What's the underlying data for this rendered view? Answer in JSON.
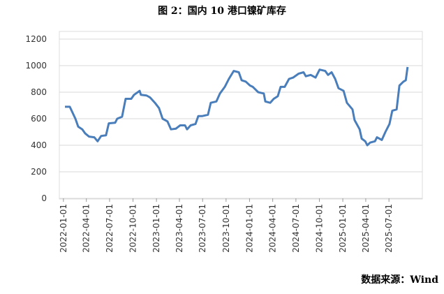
{
  "chart_data": {
    "type": "line",
    "title": "图 2：国内 10 港口镍矿库存",
    "source": "数据来源：Wind",
    "x": [
      "2022-01-07",
      "2022-01-26",
      "2022-02-17",
      "2022-02-28",
      "2022-03-16",
      "2022-03-27",
      "2022-04-12",
      "2022-05-02",
      "2022-05-15",
      "2022-05-29",
      "2022-06-17",
      "2022-06-28",
      "2022-07-23",
      "2022-07-31",
      "2022-08-19",
      "2022-09-02",
      "2022-09-24",
      "2022-10-05",
      "2022-10-27",
      "2022-11-01",
      "2022-11-23",
      "2022-12-07",
      "2022-12-26",
      "2023-01-11",
      "2023-01-25",
      "2023-02-13",
      "2023-02-27",
      "2023-03-18",
      "2023-04-04",
      "2023-04-23",
      "2023-05-01",
      "2023-05-15",
      "2023-06-03",
      "2023-06-14",
      "2023-06-30",
      "2023-07-22",
      "2023-08-02",
      "2023-08-24",
      "2023-09-07",
      "2023-09-26",
      "2023-10-12",
      "2023-10-31",
      "2023-11-20",
      "2023-12-01",
      "2023-12-17",
      "2024-01-03",
      "2024-01-14",
      "2024-02-04",
      "2024-02-26",
      "2024-03-03",
      "2024-03-22",
      "2024-04-05",
      "2024-04-21",
      "2024-05-02",
      "2024-05-18",
      "2024-06-04",
      "2024-06-20",
      "2024-07-12",
      "2024-07-31",
      "2024-08-09",
      "2024-08-28",
      "2024-09-16",
      "2024-10-02",
      "2024-10-24",
      "2024-11-04",
      "2024-11-18",
      "2024-12-02",
      "2024-12-15",
      "2025-01-04",
      "2025-01-17",
      "2025-02-08",
      "2025-02-16",
      "2025-03-08",
      "2025-03-16",
      "2025-03-30",
      "2025-04-07",
      "2025-04-18",
      "2025-05-07",
      "2025-05-15",
      "2025-06-03",
      "2025-06-17",
      "2025-07-03",
      "2025-07-14",
      "2025-07-31",
      "2025-08-11",
      "2025-08-27",
      "2025-09-05",
      "2025-09-12"
    ],
    "series": [
      {
        "name": "国内10港口镍矿库存",
        "color": "#4a7ebb",
        "values": [
          690,
          690,
          600,
          540,
          520,
          490,
          465,
          460,
          430,
          470,
          475,
          565,
          570,
          600,
          615,
          750,
          750,
          780,
          810,
          780,
          775,
          760,
          720,
          680,
          600,
          580,
          520,
          525,
          550,
          550,
          520,
          550,
          560,
          620,
          620,
          630,
          720,
          730,
          790,
          840,
          900,
          960,
          950,
          890,
          880,
          850,
          840,
          800,
          790,
          730,
          720,
          750,
          770,
          840,
          840,
          900,
          910,
          940,
          950,
          920,
          930,
          910,
          970,
          960,
          930,
          950,
          900,
          830,
          810,
          720,
          670,
          590,
          520,
          450,
          430,
          400,
          420,
          430,
          460,
          440,
          500,
          560,
          660,
          670,
          850,
          880,
          890,
          990
        ]
      }
    ],
    "xlim": [
      "2021-12-16",
      "2025-11-09"
    ],
    "xticks": [
      "2022-01-01",
      "2022-04-01",
      "2022-07-01",
      "2022-10-01",
      "2023-01-01",
      "2023-04-01",
      "2023-07-01",
      "2023-10-01",
      "2024-01-01",
      "2024-04-01",
      "2024-07-01",
      "2024-10-01",
      "2025-01-01",
      "2025-04-01",
      "2025-07-01"
    ],
    "ylim": [
      0,
      1200
    ],
    "yticks": [
      0,
      200,
      400,
      600,
      800,
      1000,
      1200
    ],
    "grid": true
  }
}
